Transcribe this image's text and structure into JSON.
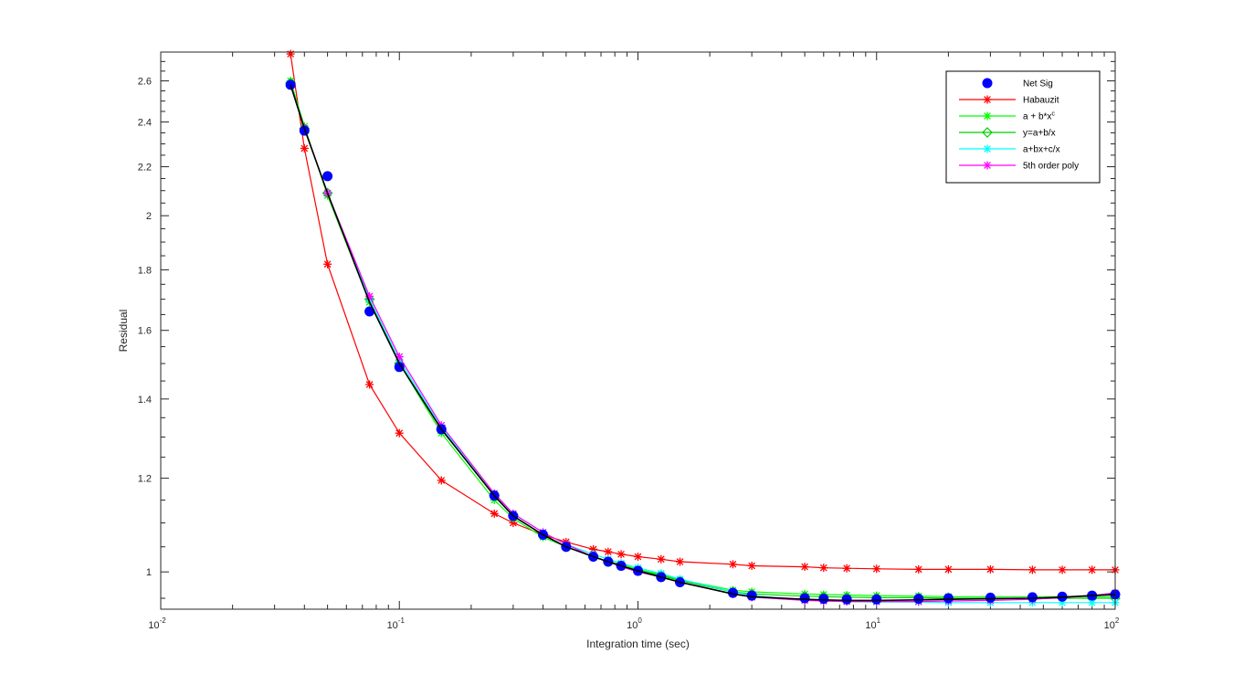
{
  "chart_data": {
    "type": "line",
    "title": "",
    "xlabel": "Integration time (sec)",
    "ylabel": "Residual",
    "xscale": "log",
    "yscale": "log",
    "xlim": [
      0.01,
      100
    ],
    "ylim": [
      0.93,
      2.75
    ],
    "x_ticks": [
      {
        "value": 0.01,
        "base": "10",
        "exp": "-2"
      },
      {
        "value": 0.1,
        "base": "10",
        "exp": "-1"
      },
      {
        "value": 1,
        "base": "10",
        "exp": "0"
      },
      {
        "value": 10,
        "base": "10",
        "exp": "1"
      },
      {
        "value": 100,
        "base": "10",
        "exp": "2"
      }
    ],
    "y_ticks": [
      {
        "value": 1,
        "label": "1"
      },
      {
        "value": 1.2,
        "label": "1.2"
      },
      {
        "value": 1.4,
        "label": "1.4"
      },
      {
        "value": 1.6,
        "label": "1.6"
      },
      {
        "value": 1.8,
        "label": "1.8"
      },
      {
        "value": 2,
        "label": "2"
      },
      {
        "value": 2.2,
        "label": "2.2"
      },
      {
        "value": 2.4,
        "label": "2.4"
      },
      {
        "value": 2.6,
        "label": "2.6"
      }
    ],
    "grid": false,
    "legend_position": "top-right",
    "legend": [
      {
        "key": "netsig",
        "label": "Net Sig",
        "marker": "dot",
        "color": "#0000ff",
        "line": false
      },
      {
        "key": "habauzit",
        "label": "Habauzit",
        "marker": "star",
        "color": "#ff0000",
        "line": true
      },
      {
        "key": "power",
        "label": "a + b*x",
        "sup": "c",
        "marker": "star",
        "color": "#00ff00",
        "line": true
      },
      {
        "key": "recip",
        "label": "y=a+b/x",
        "marker": "diamond",
        "color": "#00cc00",
        "line": true
      },
      {
        "key": "abc",
        "label": "a+bx+c/x",
        "marker": "star",
        "color": "#00ffff",
        "line": true
      },
      {
        "key": "poly",
        "label": "5th order poly",
        "marker": "star",
        "color": "#ff00ff",
        "line": true
      }
    ],
    "series": [
      {
        "key": "habauzit",
        "name": "Habauzit",
        "color": "#ff0000",
        "marker": "star",
        "line": true,
        "x": [
          0.035,
          0.04,
          0.05,
          0.075,
          0.1,
          0.15,
          0.25,
          0.3,
          0.4,
          0.5,
          0.65,
          0.75,
          0.85,
          1,
          1.25,
          1.5,
          2.5,
          3,
          5,
          6,
          7.5,
          10,
          15,
          20,
          30,
          45,
          60,
          80,
          100
        ],
        "y": [
          2.74,
          2.28,
          1.82,
          1.44,
          1.31,
          1.195,
          1.12,
          1.1,
          1.075,
          1.06,
          1.045,
          1.04,
          1.035,
          1.03,
          1.025,
          1.02,
          1.015,
          1.012,
          1.01,
          1.008,
          1.007,
          1.006,
          1.005,
          1.005,
          1.005,
          1.004,
          1.004,
          1.004,
          1.004
        ]
      },
      {
        "key": "power",
        "name": "a + b*x^c",
        "color": "#00ff00",
        "marker": "star",
        "line": true,
        "x": [
          0.035,
          0.04,
          0.05,
          0.075,
          0.1,
          0.15,
          0.25,
          0.3,
          0.4,
          0.5,
          0.65,
          0.75,
          0.85,
          1,
          1.25,
          1.5,
          2.5,
          3,
          5,
          6,
          7.5,
          10,
          15,
          20,
          30,
          45,
          60,
          80,
          100
        ],
        "y": [
          2.6,
          2.38,
          2.08,
          1.69,
          1.5,
          1.31,
          1.15,
          1.11,
          1.07,
          1.05,
          1.03,
          1.02,
          1.015,
          1.005,
          0.995,
          0.985,
          0.965,
          0.962,
          0.958,
          0.957,
          0.956,
          0.955,
          0.954,
          0.953,
          0.953,
          0.953,
          0.953,
          0.953,
          0.953
        ]
      },
      {
        "key": "recip",
        "name": "y=a+b/x",
        "color": "#00cc00",
        "marker": "diamond",
        "line": true,
        "x": [
          0.035,
          0.04,
          0.05,
          0.075,
          0.1,
          0.15,
          0.25,
          0.3,
          0.4,
          0.5,
          0.65,
          0.75,
          0.85,
          1,
          1.25,
          1.5,
          2.5,
          3,
          5,
          6,
          7.5,
          10,
          15,
          20,
          30,
          45,
          60,
          80,
          100
        ],
        "y": [
          2.59,
          2.37,
          2.09,
          1.7,
          1.5,
          1.32,
          1.16,
          1.115,
          1.075,
          1.05,
          1.03,
          1.02,
          1.012,
          1.003,
          0.993,
          0.983,
          0.962,
          0.958,
          0.954,
          0.953,
          0.952,
          0.951,
          0.951,
          0.95,
          0.95,
          0.95,
          0.95,
          0.95,
          0.95
        ]
      },
      {
        "key": "abc",
        "name": "a+bx+c/x",
        "color": "#00ffff",
        "marker": "star",
        "line": true,
        "x": [
          0.035,
          0.04,
          0.05,
          0.075,
          0.1,
          0.15,
          0.25,
          0.3,
          0.4,
          0.5,
          0.65,
          0.75,
          0.85,
          1,
          1.25,
          1.5,
          2.5,
          3,
          5,
          6,
          7.5,
          10,
          15,
          20,
          30,
          45,
          60,
          80,
          100
        ],
        "y": [
          2.58,
          2.37,
          2.09,
          1.7,
          1.51,
          1.325,
          1.165,
          1.12,
          1.08,
          1.055,
          1.035,
          1.025,
          1.017,
          1.008,
          0.997,
          0.986,
          0.962,
          0.955,
          0.947,
          0.945,
          0.944,
          0.943,
          0.943,
          0.942,
          0.942,
          0.942,
          0.942,
          0.942,
          0.942
        ]
      },
      {
        "key": "poly",
        "name": "5th order poly",
        "color": "#ff00ff",
        "marker": "star",
        "line": true,
        "x": [
          0.035,
          0.04,
          0.05,
          0.075,
          0.1,
          0.15,
          0.25,
          0.3,
          0.4,
          0.5,
          0.65,
          0.75,
          0.85,
          1,
          1.25,
          1.5,
          2.5,
          3,
          5,
          6,
          7.5,
          10,
          15,
          20,
          30,
          45,
          60,
          80,
          100
        ],
        "y": [
          2.58,
          2.37,
          2.09,
          1.71,
          1.52,
          1.33,
          1.165,
          1.12,
          1.08,
          1.055,
          1.03,
          1.02,
          1.01,
          1.0,
          0.99,
          0.98,
          0.958,
          0.952,
          0.946,
          0.945,
          0.944,
          0.944,
          0.944,
          0.945,
          0.946,
          0.948,
          0.951,
          0.955,
          0.96
        ]
      },
      {
        "key": "netsig",
        "name": "Net Sig",
        "color": "#0000ff",
        "marker": "dot",
        "line": false,
        "x": [
          0.035,
          0.04,
          0.05,
          0.075,
          0.1,
          0.15,
          0.25,
          0.3,
          0.4,
          0.5,
          0.65,
          0.75,
          0.85,
          1,
          1.25,
          1.5,
          2.5,
          3,
          5,
          6,
          7.5,
          10,
          15,
          20,
          30,
          45,
          60,
          80,
          100
        ],
        "y": [
          2.58,
          2.36,
          2.16,
          1.66,
          1.49,
          1.32,
          1.16,
          1.115,
          1.075,
          1.05,
          1.03,
          1.02,
          1.012,
          1.002,
          0.99,
          0.98,
          0.96,
          0.955,
          0.95,
          0.949,
          0.948,
          0.948,
          0.949,
          0.95,
          0.951,
          0.952,
          0.953,
          0.955,
          0.957
        ]
      },
      {
        "key": "trend",
        "name": "",
        "color": "#000000",
        "marker": "none",
        "line": true,
        "x": [
          0.035,
          0.04,
          0.05,
          0.075,
          0.1,
          0.15,
          0.25,
          0.3,
          0.4,
          0.5,
          0.65,
          0.75,
          0.85,
          1,
          1.25,
          1.5,
          2.5,
          3,
          5,
          6,
          7.5,
          10,
          15,
          20,
          30,
          45,
          60,
          80,
          100
        ],
        "y": [
          2.58,
          2.37,
          2.09,
          1.69,
          1.5,
          1.32,
          1.16,
          1.115,
          1.075,
          1.05,
          1.03,
          1.02,
          1.012,
          1.002,
          0.99,
          0.98,
          0.958,
          0.953,
          0.948,
          0.947,
          0.946,
          0.946,
          0.947,
          0.948,
          0.949,
          0.95,
          0.952,
          0.955,
          0.957
        ]
      }
    ]
  }
}
